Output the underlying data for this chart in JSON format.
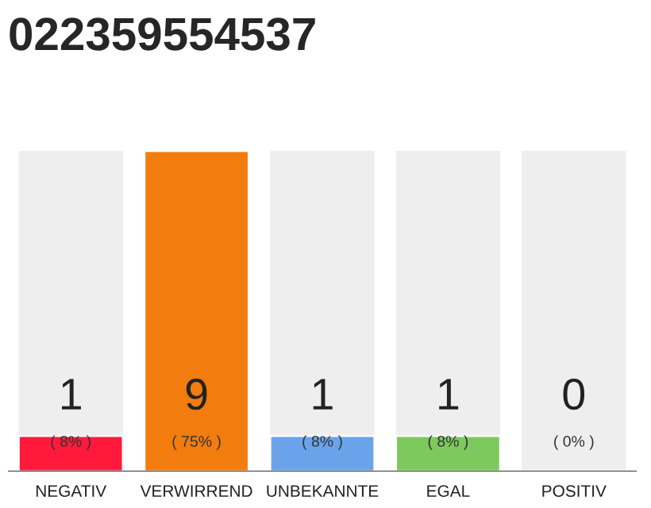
{
  "chart_data": {
    "type": "bar",
    "title": "022359554537",
    "categories": [
      "NEGATIV",
      "VERWIRREND",
      "UNBEKANNTE",
      "EGAL",
      "POSITIV"
    ],
    "values": [
      1,
      9,
      1,
      1,
      0
    ],
    "colors": [
      "#ff1a3c",
      "#f27c0e",
      "#6ba3eb",
      "#7dc95e",
      null
    ],
    "ylim": [
      0,
      9
    ],
    "data_labels": true,
    "annotations": [
      "( 8% )",
      "( 75% )",
      "( 8% )",
      "( 8% )",
      "( 0% )"
    ],
    "grid": false,
    "legend": false
  }
}
